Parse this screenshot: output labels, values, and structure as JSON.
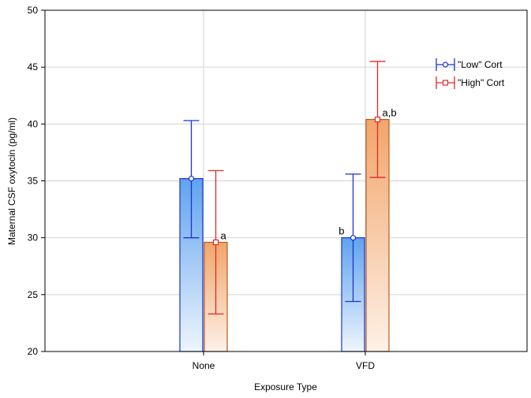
{
  "chart_data": {
    "type": "bar",
    "xlabel": "Exposure Type",
    "ylabel": "Maternal CSF oxytocin (pg/ml)",
    "ylim": [
      20,
      50
    ],
    "yticks": [
      20,
      25,
      30,
      35,
      40,
      45,
      50
    ],
    "categories": [
      "None",
      "VFD"
    ],
    "grid": true,
    "legend_position": "top-right",
    "series": [
      {
        "name": "\"Low\" Cort",
        "color": "#1c32d8",
        "values": [
          35.2,
          30.0
        ],
        "error_low": [
          30.0,
          24.4
        ],
        "error_high": [
          40.3,
          35.6
        ],
        "annotations": [
          "",
          "b"
        ]
      },
      {
        "name": "\"High\" Cort",
        "color": "#e02a2a",
        "values": [
          29.6,
          40.4
        ],
        "error_low": [
          23.3,
          35.3
        ],
        "error_high": [
          35.9,
          45.5
        ],
        "annotations": [
          "a",
          "a,b"
        ]
      }
    ]
  }
}
